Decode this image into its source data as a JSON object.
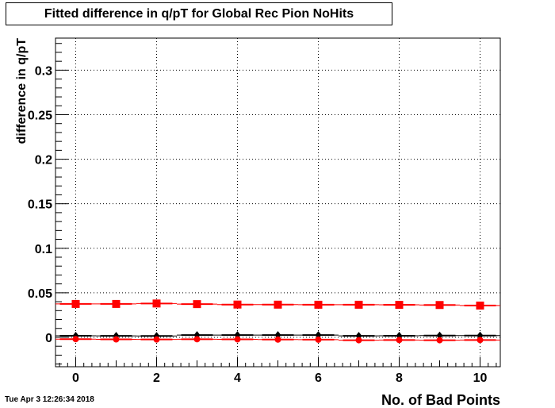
{
  "title": "Fitted difference in q/pT for Global Rec Pion NoHits",
  "timestamp": "Tue Apr  3 12:26:34 2018",
  "chart_data": {
    "type": "scatter",
    "title": "Fitted difference in q/pT for Global Rec Pion NoHits",
    "xlabel": "No. of Bad Points",
    "ylabel": "difference in q/pT",
    "xlim": [
      -0.5,
      10.5
    ],
    "ylim": [
      -0.033,
      0.336
    ],
    "xticks": [
      "0",
      "2",
      "4",
      "6",
      "8",
      "10"
    ],
    "yticks": [
      "0",
      "0.05",
      "0.1",
      "0.15",
      "0.2",
      "0.25",
      "0.3"
    ],
    "grid": true,
    "colors": {
      "black": "#000000",
      "red": "#ff0000"
    },
    "x": [
      0,
      1,
      2,
      3,
      4,
      5,
      6,
      7,
      8,
      9,
      10
    ],
    "series": [
      {
        "marker": "square",
        "color": "#ff0000",
        "values": [
          0.0375,
          0.0375,
          0.038,
          0.0373,
          0.0368,
          0.0367,
          0.0366,
          0.0366,
          0.0365,
          0.0363,
          0.0357
        ]
      },
      {
        "marker": "diamond",
        "color": "#000000",
        "values": [
          0.0018,
          0.0016,
          0.0015,
          0.0025,
          0.0025,
          0.0025,
          0.0025,
          0.0017,
          0.0018,
          0.002,
          0.002
        ]
      },
      {
        "marker": "circle",
        "color": "#ff0000",
        "values": [
          -0.002,
          -0.0023,
          -0.0024,
          -0.0021,
          -0.0022,
          -0.0025,
          -0.0026,
          -0.0032,
          -0.003,
          -0.0032,
          -0.003
        ]
      }
    ]
  }
}
